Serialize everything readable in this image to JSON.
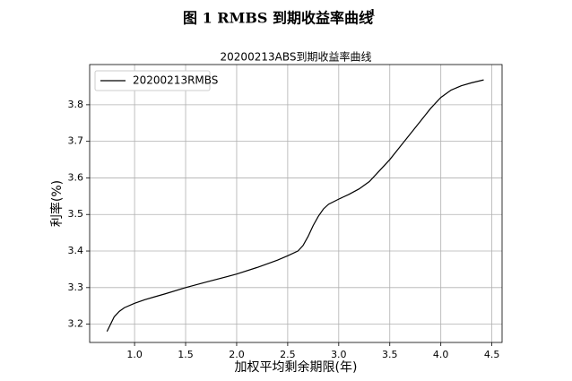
{
  "figure": {
    "title": "图 1 RMBS 到期收益率曲线",
    "note_mark": "1"
  },
  "chart_data": {
    "type": "line",
    "title": "20200213ABS到期收益率曲线",
    "x_label": "加权平均剩余期限(年)",
    "y_label": "利率(%)",
    "x": [
      0.73,
      0.8,
      0.85,
      0.9,
      1.0,
      1.1,
      1.2,
      1.3,
      1.5,
      1.7,
      2.0,
      2.2,
      2.4,
      2.5,
      2.6,
      2.65,
      2.7,
      2.75,
      2.8,
      2.85,
      2.9,
      3.0,
      3.1,
      3.2,
      3.3,
      3.4,
      3.5,
      3.6,
      3.7,
      3.8,
      3.9,
      4.0,
      4.1,
      4.2,
      4.3,
      4.42
    ],
    "series": [
      {
        "name": "20200213RMBS",
        "color": "#000000",
        "values": [
          3.18,
          3.22,
          3.235,
          3.245,
          3.257,
          3.267,
          3.275,
          3.283,
          3.3,
          3.315,
          3.337,
          3.355,
          3.375,
          3.387,
          3.4,
          3.415,
          3.44,
          3.47,
          3.495,
          3.515,
          3.528,
          3.542,
          3.555,
          3.57,
          3.59,
          3.62,
          3.65,
          3.685,
          3.72,
          3.755,
          3.79,
          3.82,
          3.84,
          3.852,
          3.86,
          3.868
        ]
      }
    ],
    "xlim": [
      0.56,
      4.6
    ],
    "ylim": [
      3.15,
      3.91
    ],
    "xticks": [
      {
        "value": 1,
        "label": "1.0"
      },
      1.5,
      {
        "value": 2,
        "label": "2.0"
      },
      2.5,
      {
        "value": 3,
        "label": "3.0"
      },
      3.5,
      {
        "value": 4,
        "label": "4.0"
      },
      4.5
    ],
    "yticks": [
      3.2,
      3.3,
      3.4,
      3.5,
      3.6,
      3.7,
      3.8
    ],
    "grid": true,
    "legend": "upper-left"
  }
}
